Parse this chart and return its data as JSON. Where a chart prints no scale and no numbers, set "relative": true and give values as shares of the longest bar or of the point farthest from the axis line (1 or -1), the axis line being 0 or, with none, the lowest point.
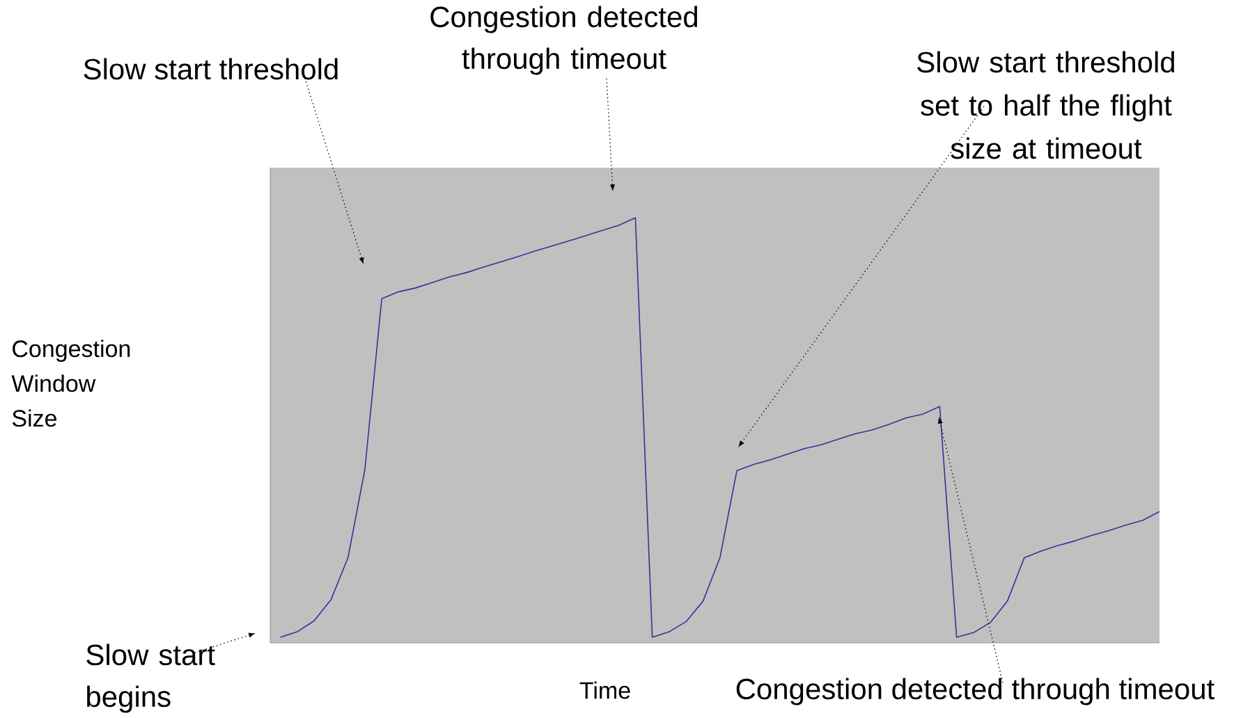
{
  "chart_data": {
    "type": "line",
    "relative": true,
    "tick_labels": false,
    "xlabel": "Time",
    "categories": [
      null,
      null,
      null,
      null,
      null,
      null,
      null,
      null,
      null,
      null,
      null,
      null,
      null,
      null,
      null,
      null,
      null,
      null,
      null,
      null,
      null,
      null,
      null,
      null,
      null,
      null,
      null,
      null,
      null,
      null,
      null,
      null,
      null,
      null,
      null,
      null,
      null,
      null,
      null,
      null,
      null,
      null,
      null,
      null,
      null,
      null,
      null,
      null,
      null,
      null,
      null,
      null,
      null
    ],
    "series": [
      {
        "color": "#333399",
        "values": [
          0.013,
          0.026,
          0.052,
          0.102,
          0.2,
          0.408,
          0.81,
          0.826,
          0.835,
          0.848,
          0.861,
          0.871,
          0.884,
          0.896,
          0.908,
          0.921,
          0.933,
          0.945,
          0.957,
          0.97,
          0.982,
          1,
          0.013,
          0.026,
          0.05,
          0.098,
          0.2,
          0.405,
          0.42,
          0.431,
          0.444,
          0.457,
          0.466,
          0.479,
          0.492,
          0.501,
          0.514,
          0.529,
          0.538,
          0.556,
          0.013,
          0.024,
          0.048,
          0.098,
          0.2,
          0.216,
          0.229,
          0.24,
          0.253,
          0.264,
          0.277,
          0.288,
          0.309
        ]
      }
    ],
    "annotations": [
      "Slow start threshold",
      "Congestion detected through timeout",
      "Slow start threshold set to half the flight size at timeout",
      "Slow start begins",
      "Congestion detected through timeout",
      "Congestion Window Size"
    ]
  }
}
